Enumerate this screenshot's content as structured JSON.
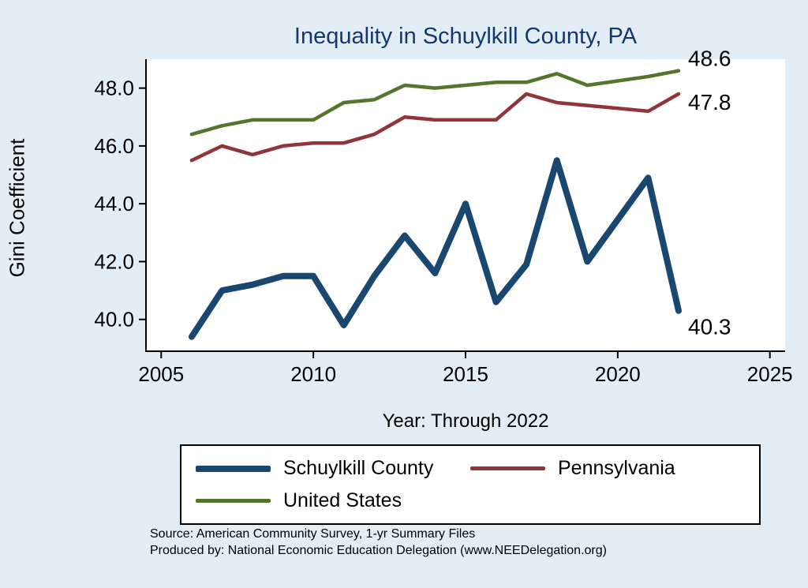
{
  "page": {
    "title": "Inequality in Schuylkill County, PA",
    "title_color": "#13386e",
    "background": "#e2edf5",
    "ylabel": "Gini Coefficient",
    "xlabel": "Year: Through 2022",
    "source_line1": "Source: American Community Survey, 1-yr Summary Files",
    "source_line2": "Produced by: National Economic Education Delegation (www.NEEDelegation.org)"
  },
  "chart_data": {
    "type": "line",
    "title": "Inequality in Schuylkill County, PA",
    "xlabel": "Year: Through 2022",
    "ylabel": "Gini Coefficient",
    "x": [
      2006,
      2007,
      2008,
      2009,
      2010,
      2011,
      2012,
      2013,
      2014,
      2015,
      2016,
      2017,
      2018,
      2019,
      2021,
      2022
    ],
    "series": [
      {
        "name": "Schuylkill County",
        "color": "#1a476f",
        "width": 8,
        "end_label": "40.3",
        "values": [
          39.4,
          41.0,
          41.2,
          41.5,
          41.5,
          39.8,
          41.5,
          42.9,
          41.6,
          44.0,
          40.6,
          41.9,
          45.5,
          42.0,
          44.9,
          40.3
        ]
      },
      {
        "name": "Pennsylvania",
        "color": "#90353b",
        "width": 4.5,
        "end_label": "47.8",
        "values": [
          45.5,
          46.0,
          45.7,
          46.0,
          46.1,
          46.1,
          46.4,
          47.0,
          46.9,
          46.9,
          46.9,
          47.8,
          47.5,
          47.4,
          47.2,
          47.8
        ]
      },
      {
        "name": "United States",
        "color": "#55752f",
        "width": 4.5,
        "end_label": "48.6",
        "values": [
          46.4,
          46.7,
          46.9,
          46.9,
          46.9,
          47.5,
          47.6,
          48.1,
          48.0,
          48.1,
          48.2,
          48.2,
          48.5,
          48.1,
          48.4,
          48.6
        ]
      }
    ],
    "legend": [
      "Schuylkill County",
      "Pennsylvania",
      "United States"
    ],
    "legend_position": "bottom",
    "grid": false,
    "xlim": [
      2004.5,
      2025.5
    ],
    "ylim": [
      38.9,
      49.0
    ],
    "xticks": [
      2005,
      2010,
      2015,
      2020,
      2025
    ],
    "xtick_labels": [
      "2005",
      "2010",
      "2015",
      "2020",
      "2025"
    ],
    "yticks": [
      40,
      42,
      44,
      46,
      48
    ],
    "ytick_labels": [
      "40.0",
      "42.0",
      "44.0",
      "46.0",
      "48.0"
    ]
  }
}
